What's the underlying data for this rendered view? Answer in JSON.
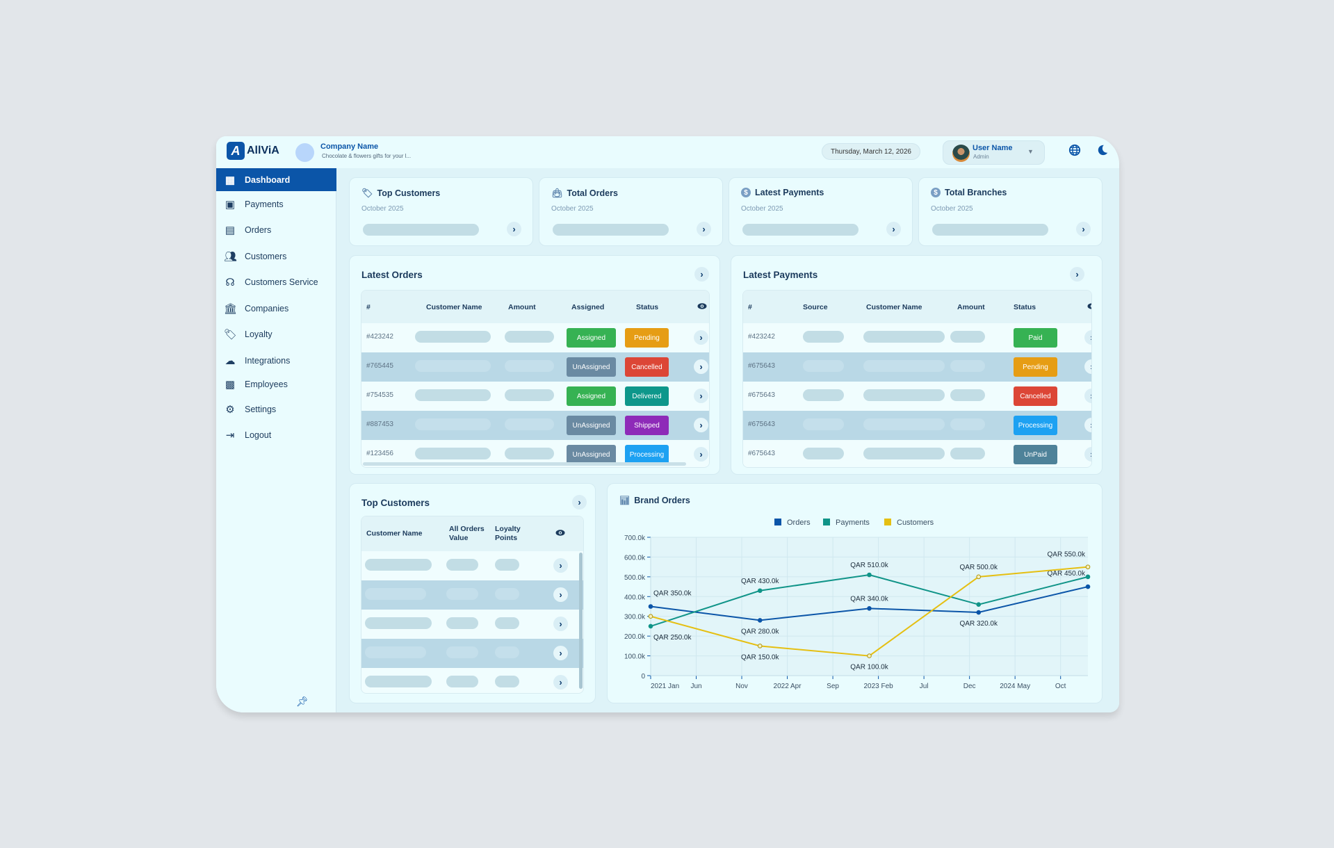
{
  "header": {
    "logo_text": "AllViA",
    "company_name": "Company Name",
    "company_tagline": "Chocolate & flowers gifts for your l...",
    "date": "Thursday, March 12, 2026",
    "user_name": "User Name",
    "user_role": "Admin",
    "icons": [
      "globe-icon",
      "moon-icon"
    ]
  },
  "sidebar": {
    "items": [
      {
        "label": "Dashboard",
        "icon": "dashboard-icon",
        "active": true
      },
      {
        "label": "Payments",
        "icon": "payments-icon"
      },
      {
        "label": "Orders",
        "icon": "orders-icon"
      },
      {
        "label": "Customers",
        "icon": "customers-icon"
      },
      {
        "label": "Customers Service",
        "icon": "headset-icon"
      },
      {
        "label": "Companies",
        "icon": "bank-icon"
      },
      {
        "label": "Loyalty",
        "icon": "loyalty-tag-icon"
      },
      {
        "label": "Integrations",
        "icon": "cloud-icon"
      },
      {
        "label": "Employees",
        "icon": "employee-badge-icon"
      },
      {
        "label": "Settings",
        "icon": "gear-icon"
      },
      {
        "label": "Logout",
        "icon": "logout-icon"
      }
    ],
    "pin_icon": "pin-icon"
  },
  "stats": [
    {
      "title": "Top Customers",
      "period": "October 2025",
      "icon": "tag-icon"
    },
    {
      "title": "Total Orders",
      "period": "October 2025",
      "icon": "shopping-bag-icon"
    },
    {
      "title": "Latest Payments",
      "period": "October 2025",
      "icon": "dollar-icon"
    },
    {
      "title": "Total Branches",
      "period": "October 2025",
      "icon": "dollar-icon"
    }
  ],
  "latest_orders": {
    "title": "Latest Orders",
    "columns": [
      "#",
      "Customer Name",
      "Amount",
      "Assigned",
      "Status"
    ],
    "rows": [
      {
        "id": "#423242",
        "assigned": "Assigned",
        "status": "Pending"
      },
      {
        "id": "#765445",
        "assigned": "UnAssigned",
        "status": "Cancelled"
      },
      {
        "id": "#754535",
        "assigned": "Assigned",
        "status": "Delivered"
      },
      {
        "id": "#887453",
        "assigned": "UnAssigned",
        "status": "Shipped"
      },
      {
        "id": "#123456",
        "assigned": "UnAssigned",
        "status": "Processing"
      }
    ]
  },
  "latest_payments": {
    "title": "Latest Payments",
    "columns": [
      "#",
      "Source",
      "Customer Name",
      "Amount",
      "Status"
    ],
    "rows": [
      {
        "id": "#423242",
        "status": "Paid"
      },
      {
        "id": "#675643",
        "status": "Pending"
      },
      {
        "id": "#675643",
        "status": "Cancelled"
      },
      {
        "id": "#675643",
        "status": "Processing"
      },
      {
        "id": "#675643",
        "status": "UnPaid"
      }
    ]
  },
  "top_customers": {
    "title": "Top Customers",
    "columns": [
      "Customer Name",
      "All Orders\nValue",
      "Loyalty\nPoints"
    ],
    "row_count": 5
  },
  "status_colors": {
    "Assigned": "#36b253",
    "UnAssigned": "#6a8aa2",
    "Pending": "#e69d14",
    "Cancelled": "#dc4636",
    "Delivered": "#0e978b",
    "Shipped": "#8e2bb8",
    "Processing": "#1da1f2",
    "Paid": "#36b253",
    "UnPaid": "#4e8299"
  },
  "chart_data": {
    "type": "line",
    "title": "Brand Orders",
    "x": [
      "2021-01",
      "2022-01",
      "2023-01",
      "2024-01",
      "2025-01"
    ],
    "x_ticks": [
      "2021 Jan",
      "Jun",
      "Nov",
      "2022 Apr",
      "Sep",
      "2023 Feb",
      "Jul",
      "Dec",
      "2024 May",
      "Oct"
    ],
    "y_ticks": [
      "0",
      "100.0k",
      "200.0k",
      "300.0k",
      "400.0k",
      "500.0k",
      "600.0k",
      "700.0k"
    ],
    "ylim": [
      0,
      700000
    ],
    "grid": true,
    "legend": "top",
    "series": [
      {
        "name": "Orders",
        "color": "#0b55a8",
        "values": [
          350000,
          280000,
          340000,
          320000,
          450000
        ],
        "data_labels": [
          "QAR 350.0k",
          "QAR 280.0k",
          "QAR 340.0k",
          "QAR 320.0k",
          "QAR 450.0k"
        ]
      },
      {
        "name": "Payments",
        "color": "#109488",
        "values": [
          250000,
          430000,
          510000,
          360000,
          500000
        ],
        "data_labels": [
          "QAR 250.0k",
          "QAR 430.0k",
          "QAR 510.0k",
          null,
          null
        ]
      },
      {
        "name": "Customers",
        "color": "#e5bf12",
        "values": [
          300000,
          150000,
          100000,
          500000,
          550000
        ],
        "data_labels": [
          null,
          "QAR 150.0k",
          "QAR 100.0k",
          "QAR 500.0k",
          "QAR 550.0k"
        ]
      }
    ]
  }
}
